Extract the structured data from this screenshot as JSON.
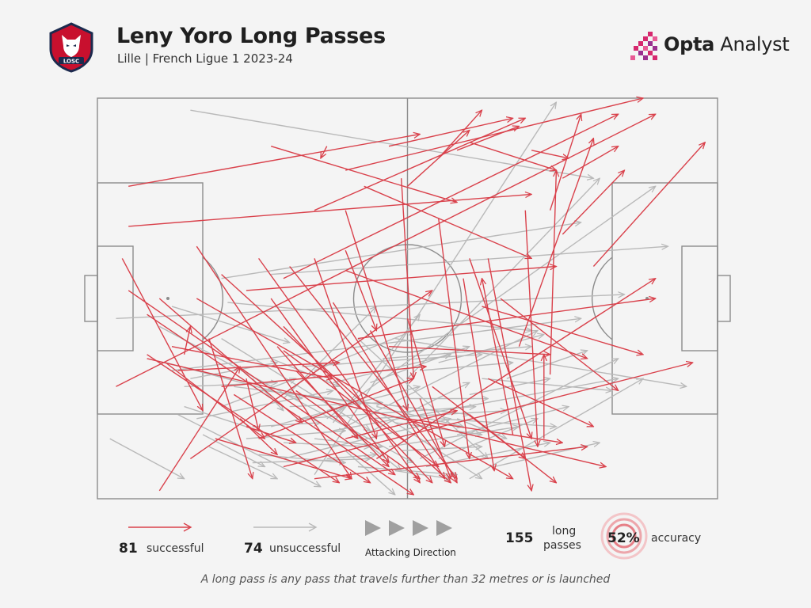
{
  "header": {
    "title": "Leny Yoro Long Passes",
    "subtitle": "Lille | French Ligue 1 2023-24",
    "brand_bold": "Opta",
    "brand_light": "Analyst",
    "crest_text": "LOSC"
  },
  "legend": {
    "successful_count": "81",
    "successful_label": "successful",
    "unsuccessful_count": "74",
    "unsuccessful_label": "unsuccessful",
    "direction_label": "Attacking Direction",
    "total_count": "155",
    "total_label_line1": "long",
    "total_label_line2": "passes",
    "accuracy_value": "52%",
    "accuracy_label": "accuracy"
  },
  "footnote": "A long pass is any pass that travels further than 32 metres or is launched",
  "colors": {
    "successful": "#d9414b",
    "unsuccessful": "#b9b9b9",
    "pitch_lines": "#8c8c8c",
    "background": "#f4f4f4",
    "brand_accent": "#d6286e"
  },
  "chart_data": {
    "type": "pass_map",
    "pitch": {
      "length": 100,
      "width": 100,
      "units": "percent_of_pitch"
    },
    "series": [
      {
        "name": "successful",
        "passes": [
          [
            8,
            54,
            51,
            99
          ],
          [
            16,
            37,
            41,
            95
          ],
          [
            3,
            72,
            90,
            4
          ],
          [
            8,
            65,
            82,
            92
          ],
          [
            15,
            90,
            54,
            48
          ],
          [
            30,
            92,
            96,
            66
          ],
          [
            10,
            98,
            23,
            67
          ],
          [
            35,
            95,
            79,
            87
          ],
          [
            40,
            85,
            58,
            78
          ],
          [
            26,
            85,
            51,
            70
          ],
          [
            45,
            90,
            90,
            45
          ],
          [
            60,
            79,
            74,
            96
          ],
          [
            67,
            84,
            62,
            45
          ],
          [
            65,
            50,
            84,
            73
          ],
          [
            62,
            52,
            88,
            64
          ],
          [
            72,
            85,
            72,
            64
          ],
          [
            73,
            69,
            74,
            18
          ],
          [
            68,
            62,
            80,
            10
          ],
          [
            80,
            42,
            98,
            11
          ],
          [
            75,
            34,
            85,
            18
          ],
          [
            30,
            45,
            84,
            4
          ],
          [
            5,
            32,
            70,
            24
          ],
          [
            5,
            22,
            52,
            9
          ],
          [
            28,
            12,
            58,
            26
          ],
          [
            37,
            12,
            36,
            15
          ],
          [
            35,
            28,
            69,
            5
          ],
          [
            40,
            18,
            88,
            0
          ],
          [
            55,
            15,
            62,
            3
          ],
          [
            47,
            12,
            67,
            5
          ],
          [
            58,
            13,
            68,
            7
          ],
          [
            60,
            11,
            74,
            18
          ],
          [
            70,
            13,
            76,
            15
          ],
          [
            75,
            20,
            84,
            12
          ],
          [
            73,
            28,
            78,
            4
          ],
          [
            50,
            22,
            60,
            8
          ],
          [
            43,
            22,
            70,
            40
          ],
          [
            24,
            48,
            74,
            42
          ],
          [
            4,
            40,
            17,
            78
          ],
          [
            10,
            50,
            33,
            81
          ],
          [
            30,
            57,
            54,
            96
          ],
          [
            14,
            64,
            15,
            57
          ],
          [
            11,
            66,
            27,
            85
          ],
          [
            32,
            68,
            47,
            92
          ],
          [
            54,
            72,
            69,
            90
          ],
          [
            32,
            73,
            52,
            95
          ],
          [
            23,
            80,
            29,
            89
          ],
          [
            24,
            82,
            32,
            86
          ],
          [
            18,
            60,
            25,
            95
          ],
          [
            8,
            64,
            39,
            96
          ],
          [
            24,
            70,
            26,
            83
          ],
          [
            13,
            68,
            39,
            66
          ],
          [
            30,
            63,
            55,
            92
          ],
          [
            44,
            58,
            58,
            96
          ],
          [
            50,
            80,
            75,
            86
          ],
          [
            47,
            62,
            73,
            64
          ],
          [
            40,
            38,
            45,
            58
          ],
          [
            26,
            40,
            52,
            96
          ],
          [
            5,
            48,
            48,
            94
          ],
          [
            12,
            62,
            38,
            70
          ],
          [
            35,
            40,
            45,
            85
          ],
          [
            20,
            44,
            57,
            96
          ],
          [
            60,
            40,
            70,
            85
          ],
          [
            63,
            70,
            80,
            82
          ],
          [
            40,
            43,
            79,
            65
          ],
          [
            16,
            50,
            67,
            95
          ],
          [
            31,
            42,
            58,
            95
          ],
          [
            29,
            62,
            42,
            85
          ],
          [
            50,
            55,
            56,
            87
          ],
          [
            52,
            75,
            57,
            95
          ],
          [
            19,
            85,
            41,
            95
          ],
          [
            38,
            51,
            56,
            95
          ],
          [
            55,
            30,
            60,
            90
          ],
          [
            20,
            72,
            53,
            67
          ],
          [
            42,
            60,
            90,
            50
          ],
          [
            63,
            40,
            70,
            98
          ],
          [
            69,
            28,
            71,
            87
          ],
          [
            40,
            28,
            50,
            78
          ],
          [
            22,
            74,
            44,
            96
          ],
          [
            59,
            45,
            64,
            93
          ],
          [
            49,
            20,
            51,
            70
          ],
          [
            28,
            50,
            47,
            91
          ]
        ]
      },
      {
        "name": "unsuccessful",
        "passes": [
          [
            15,
            3,
            80,
            20
          ],
          [
            20,
            45,
            78,
            31
          ],
          [
            28,
            44,
            92,
            37
          ],
          [
            21,
            51,
            70,
            58
          ],
          [
            12,
            68,
            78,
            55
          ],
          [
            3,
            55,
            85,
            49
          ],
          [
            30,
            75,
            45,
            52
          ],
          [
            37,
            80,
            90,
            22
          ],
          [
            42,
            60,
            63,
            90
          ],
          [
            42,
            75,
            62,
            95
          ],
          [
            50,
            70,
            81,
            20
          ],
          [
            52,
            90,
            84,
            65
          ],
          [
            40,
            82,
            71,
            58
          ],
          [
            38,
            83,
            84,
            70
          ],
          [
            48,
            60,
            95,
            72
          ],
          [
            50,
            75,
            63,
            75
          ],
          [
            60,
            95,
            88,
            70
          ],
          [
            62,
            70,
            83,
            73
          ],
          [
            38,
            81,
            52,
            54
          ],
          [
            35,
            94,
            74,
            1
          ],
          [
            30,
            90,
            57,
            80
          ],
          [
            55,
            80,
            74,
            82
          ],
          [
            15,
            70,
            29,
            66
          ],
          [
            37,
            78,
            52,
            72
          ],
          [
            22,
            72,
            42,
            76
          ],
          [
            2,
            85,
            14,
            95
          ],
          [
            20,
            60,
            44,
            83
          ],
          [
            13,
            79,
            36,
            97
          ],
          [
            14,
            77,
            32,
            86
          ],
          [
            17,
            84,
            27,
            92
          ],
          [
            30,
            86,
            44,
            87
          ],
          [
            35,
            85,
            46,
            87
          ],
          [
            40,
            82,
            49,
            93
          ],
          [
            45,
            77,
            59,
            82
          ],
          [
            48,
            81,
            62,
            84
          ],
          [
            49,
            88,
            62,
            87
          ],
          [
            43,
            84,
            60,
            71
          ],
          [
            24,
            85,
            40,
            83
          ],
          [
            25,
            82,
            36,
            81
          ],
          [
            16,
            80,
            38,
            73
          ],
          [
            27,
            73,
            60,
            79
          ],
          [
            10,
            57,
            51,
            91
          ],
          [
            11,
            66,
            33,
            75
          ],
          [
            12,
            52,
            31,
            61
          ],
          [
            25,
            70,
            30,
            78
          ],
          [
            28,
            65,
            39,
            72
          ],
          [
            33,
            80,
            61,
            77
          ],
          [
            40,
            88,
            48,
            99
          ],
          [
            48,
            93,
            57,
            95
          ],
          [
            53,
            92,
            73,
            86
          ],
          [
            55,
            90,
            71,
            80
          ],
          [
            20,
            77,
            32,
            70
          ],
          [
            33,
            67,
            62,
            64
          ],
          [
            47,
            87,
            68,
            82
          ],
          [
            38,
            71,
            57,
            64
          ],
          [
            44,
            71,
            60,
            62
          ],
          [
            55,
            66,
            72,
            59
          ],
          [
            35,
            68,
            51,
            58
          ],
          [
            28,
            82,
            40,
            77
          ],
          [
            52,
            68,
            67,
            66
          ],
          [
            60,
            74,
            73,
            70
          ],
          [
            66,
            70,
            79,
            63
          ],
          [
            44,
            80,
            66,
            78
          ],
          [
            46,
            65,
            70,
            62
          ],
          [
            58,
            84,
            76,
            77
          ],
          [
            26,
            89,
            40,
            91
          ],
          [
            18,
            87,
            29,
            95
          ],
          [
            31,
            77,
            46,
            76
          ],
          [
            64,
            92,
            81,
            86
          ],
          [
            58,
            80,
            66,
            85
          ],
          [
            37,
            90,
            45,
            89
          ],
          [
            25,
            91,
            44,
            90
          ],
          [
            14,
            72,
            29,
            71
          ],
          [
            42,
            92,
            58,
            94
          ]
        ]
      }
    ],
    "attacking_direction": "left-to-right",
    "totals": {
      "successful": 81,
      "unsuccessful": 74,
      "long_passes": 155,
      "accuracy_pct": 52
    }
  }
}
